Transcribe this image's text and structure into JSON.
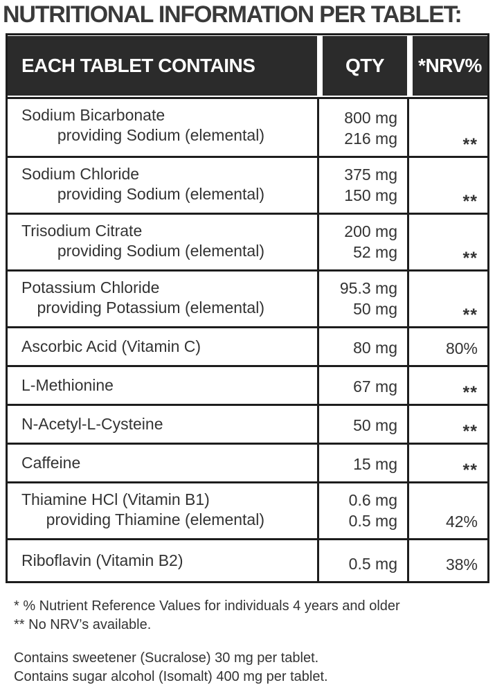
{
  "title": "NUTRITIONAL INFORMATION PER TABLET:",
  "table": {
    "headers": [
      "EACH TABLET CONTAINS",
      "QTY",
      "*NRV%"
    ],
    "rows": [
      {
        "name": "Sodium Bicarbonate",
        "sub": "providing Sodium (elemental)",
        "qty": [
          "800 mg",
          "216 mg"
        ],
        "nrv": "**"
      },
      {
        "name": "Sodium Chloride",
        "sub": "providing Sodium (elemental)",
        "qty": [
          "375 mg",
          "150 mg"
        ],
        "nrv": "**"
      },
      {
        "name": "Trisodium Citrate",
        "sub": "providing Sodium (elemental)",
        "qty": [
          "200 mg",
          "52 mg"
        ],
        "nrv": "**"
      },
      {
        "name": "Potassium Chloride",
        "sub": "providing Potassium (elemental)",
        "qty": [
          "95.3 mg",
          "50 mg"
        ],
        "nrv": "**"
      },
      {
        "name": "Ascorbic Acid (Vitamin C)",
        "sub": null,
        "qty": [
          "80 mg"
        ],
        "nrv": "80%"
      },
      {
        "name": "L-Methionine",
        "sub": null,
        "qty": [
          "67 mg"
        ],
        "nrv": "**"
      },
      {
        "name": "N-Acetyl-L-Cysteine",
        "sub": null,
        "qty": [
          "50 mg"
        ],
        "nrv": "**"
      },
      {
        "name": "Caffeine",
        "sub": null,
        "qty": [
          "15 mg"
        ],
        "nrv": "**"
      },
      {
        "name": "Thiamine HCl (Vitamin B1)",
        "sub": "providing Thiamine (elemental)",
        "qty": [
          "0.6 mg",
          "0.5 mg"
        ],
        "nrv": "42%"
      },
      {
        "name": "Riboflavin (Vitamin B2)",
        "sub": null,
        "qty": [
          "0.5 mg"
        ],
        "nrv": "38%"
      }
    ]
  },
  "footnotes": {
    "nrv_notes": [
      "* % Nutrient Reference Values for individuals 4 years and older",
      "** No NRV’s available."
    ],
    "contains_notes": [
      "Contains sweetener (Sucralose) 30 mg per tablet.",
      "Contains sugar alcohol (Isomalt) 400 mg per tablet."
    ]
  },
  "colors": {
    "header_bg": "#2b2b2b",
    "header_text": "#ffffff",
    "border": "#1d1d1d",
    "body_text": "#333333",
    "title_text": "#3a3a3a"
  }
}
